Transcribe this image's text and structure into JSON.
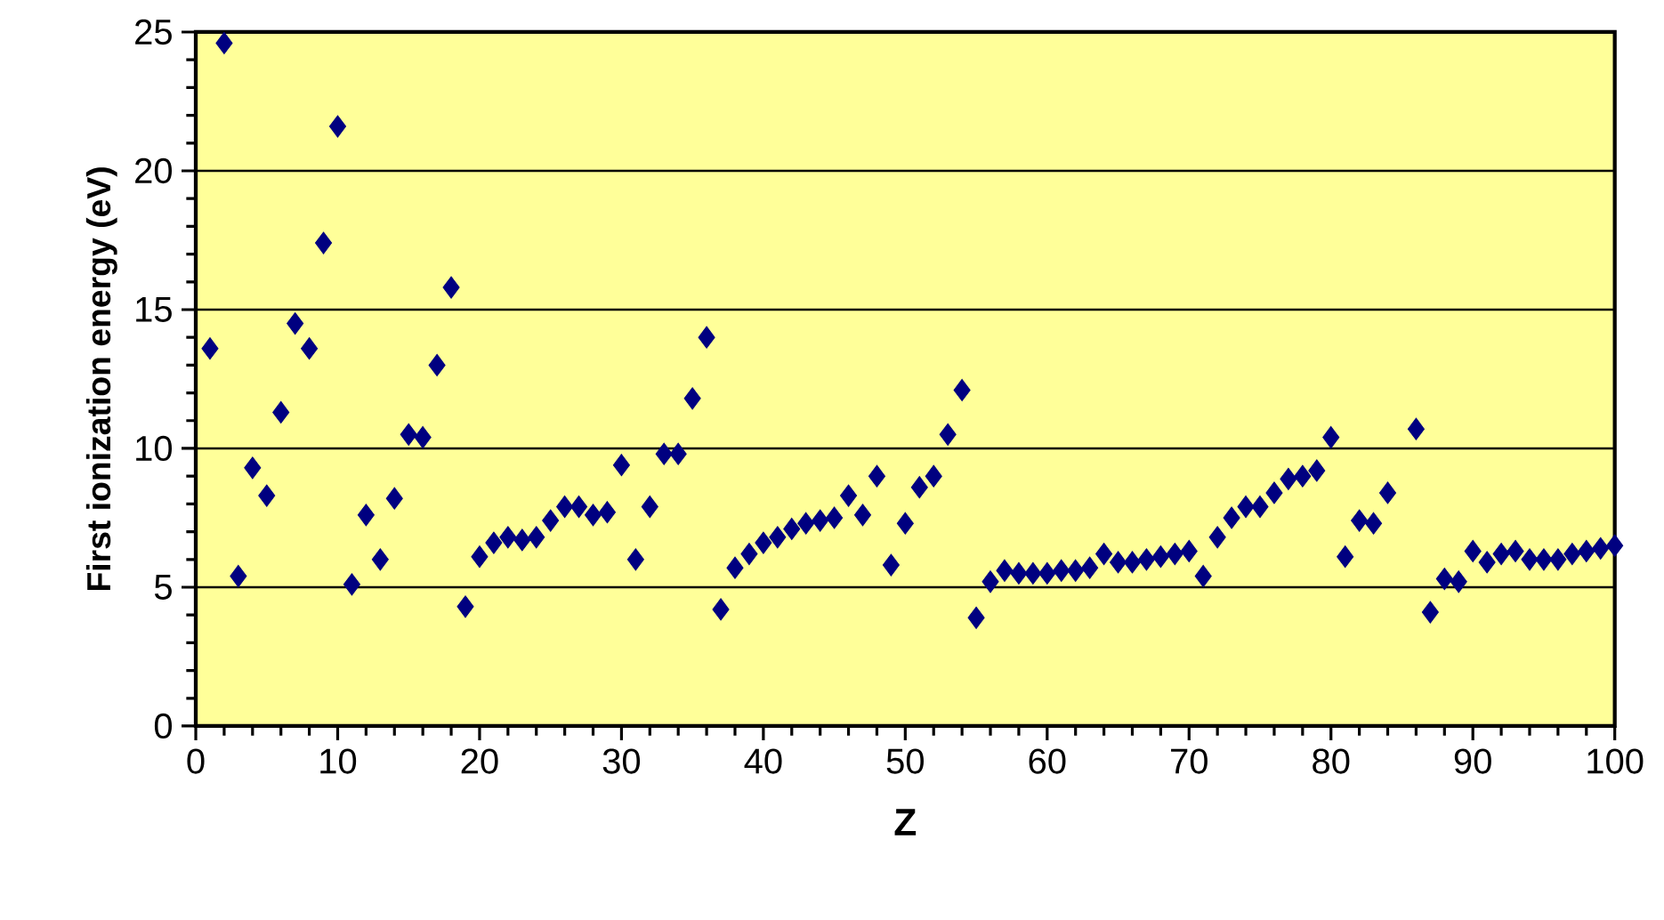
{
  "chart_data": {
    "type": "scatter",
    "xlabel": "Z",
    "ylabel": "First  ionization energy (eV)",
    "xlim": [
      0,
      100
    ],
    "xticks": [
      0,
      10,
      20,
      30,
      40,
      50,
      60,
      70,
      80,
      90,
      100
    ],
    "ylim": [
      0,
      25
    ],
    "yticks": [
      0,
      5,
      10,
      15,
      20,
      25
    ],
    "grid": "y",
    "marker": "diamond",
    "series": [
      {
        "color": "#000080",
        "x": [
          1,
          2,
          3,
          4,
          5,
          6,
          7,
          8,
          9,
          10,
          11,
          12,
          13,
          14,
          15,
          16,
          17,
          18,
          19,
          20,
          21,
          22,
          23,
          24,
          25,
          26,
          27,
          28,
          29,
          30,
          31,
          32,
          33,
          34,
          35,
          36,
          37,
          38,
          39,
          40,
          41,
          42,
          43,
          44,
          45,
          46,
          47,
          48,
          49,
          50,
          51,
          52,
          53,
          54,
          55,
          56,
          57,
          58,
          59,
          60,
          61,
          62,
          63,
          64,
          65,
          66,
          67,
          68,
          69,
          70,
          71,
          72,
          73,
          74,
          75,
          76,
          77,
          78,
          79,
          80,
          81,
          82,
          83,
          84,
          86,
          87,
          88,
          89,
          90,
          91,
          92,
          93,
          94,
          95,
          96,
          97,
          98,
          99,
          100
        ],
        "values": [
          13.6,
          24.6,
          5.4,
          9.3,
          8.3,
          11.3,
          14.5,
          13.6,
          17.4,
          21.6,
          5.1,
          7.6,
          6.0,
          8.2,
          10.5,
          10.4,
          13.0,
          15.8,
          4.3,
          6.1,
          6.6,
          6.8,
          6.7,
          6.8,
          7.4,
          7.9,
          7.9,
          7.6,
          7.7,
          9.4,
          6.0,
          7.9,
          9.8,
          9.8,
          11.8,
          14.0,
          4.2,
          5.7,
          6.2,
          6.6,
          6.8,
          7.1,
          7.3,
          7.4,
          7.5,
          8.3,
          7.6,
          9.0,
          5.8,
          7.3,
          8.6,
          9.0,
          10.5,
          12.1,
          3.9,
          5.2,
          5.6,
          5.5,
          5.5,
          5.5,
          5.6,
          5.6,
          5.7,
          6.2,
          5.9,
          5.9,
          6.0,
          6.1,
          6.2,
          6.3,
          5.4,
          6.8,
          7.5,
          7.9,
          7.9,
          8.4,
          8.9,
          9.0,
          9.2,
          10.4,
          6.1,
          7.4,
          7.3,
          8.4,
          10.7,
          4.1,
          5.3,
          5.2,
          6.3,
          5.9,
          6.2,
          6.3,
          6.0,
          6.0,
          6.0,
          6.2,
          6.3,
          6.4,
          6.5
        ]
      }
    ]
  }
}
